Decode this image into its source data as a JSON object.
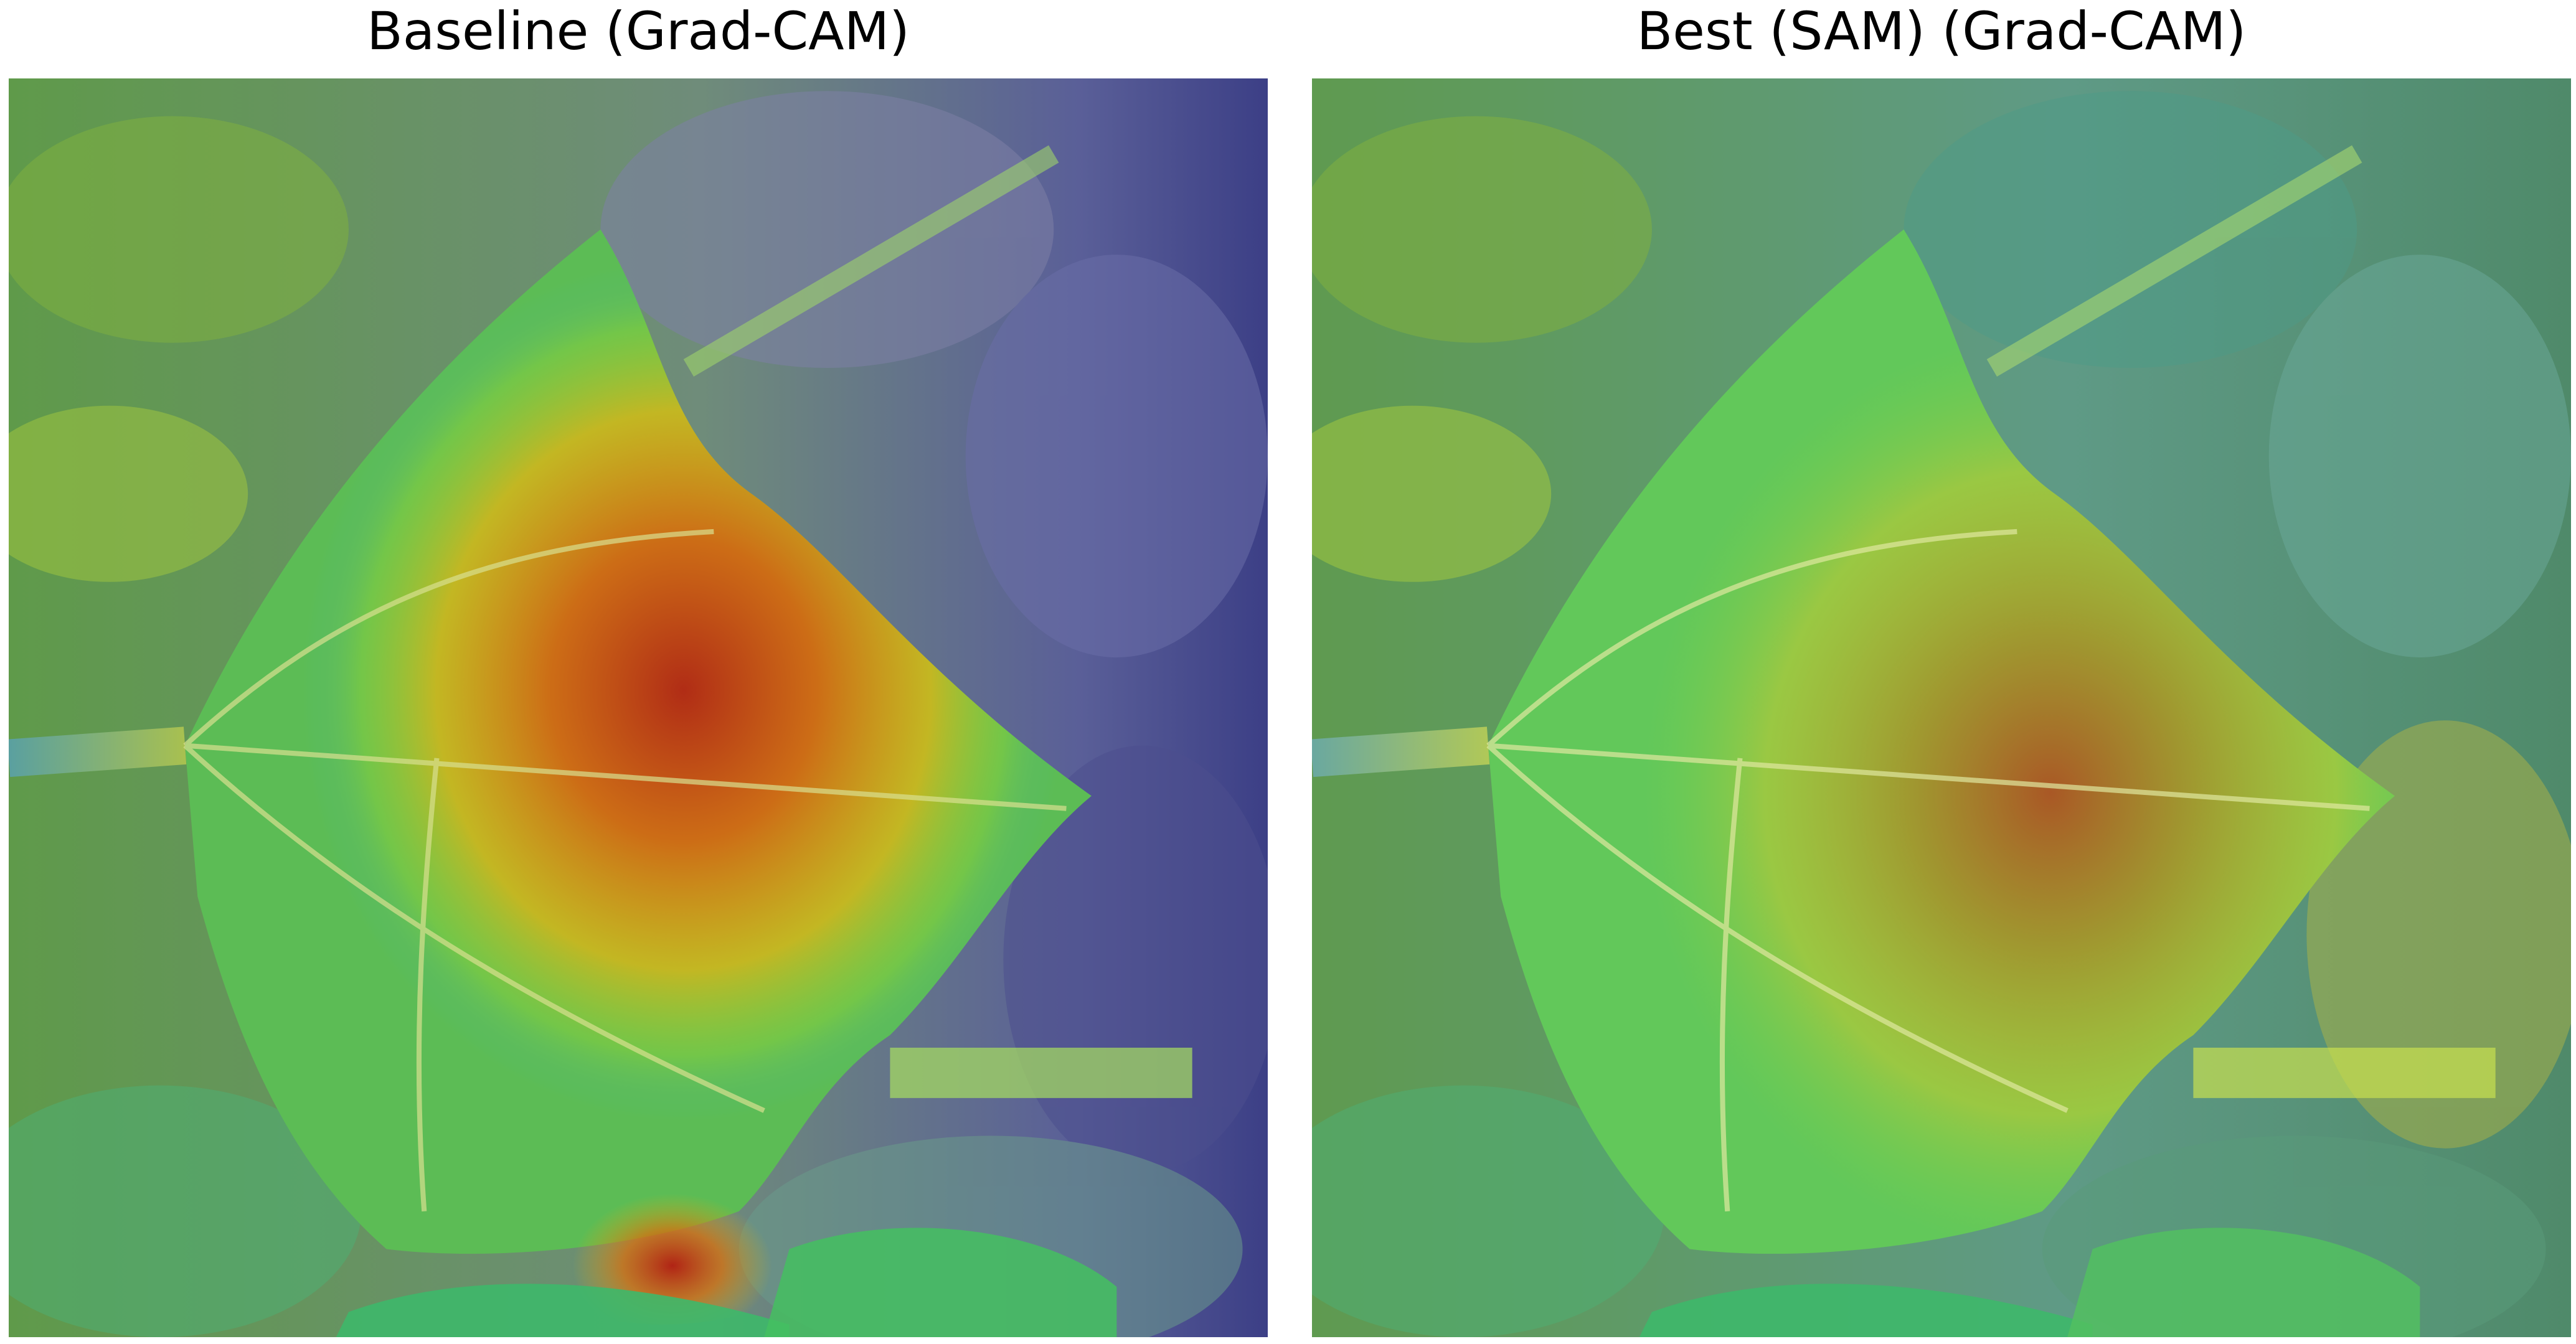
{
  "panels": [
    {
      "title": "Baseline (Grad-CAM)",
      "image_description_icon": "leaf-gradcam-heatmap-icon",
      "colors": {
        "hot": "#c62a10",
        "warm": "#e0a010",
        "mid": "#9fd235",
        "cool": "#3fb0a0",
        "cold": "#4a4f9a"
      }
    },
    {
      "title": "Best (SAM) (Grad-CAM)",
      "image_description_icon": "leaf-gradcam-heatmap-icon",
      "colors": {
        "hot": "#b6441c",
        "warm": "#c4b022",
        "mid": "#7ed04a",
        "cool": "#3fb4a8",
        "cold": "#3f6c9c"
      }
    }
  ]
}
